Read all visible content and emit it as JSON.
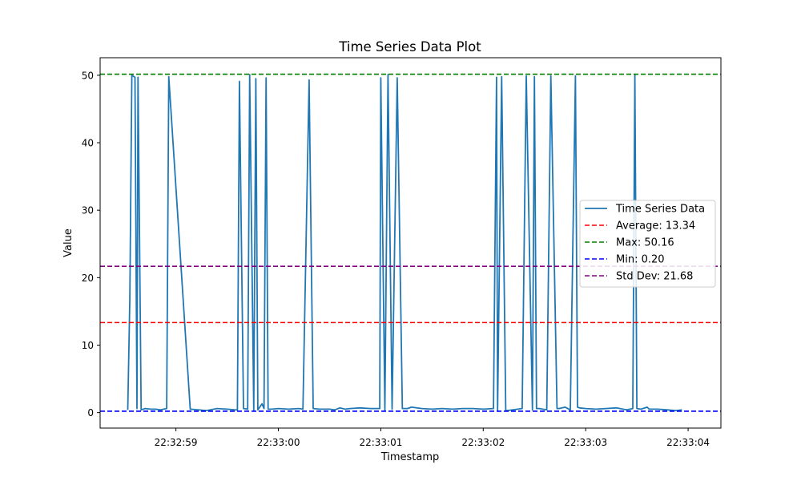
{
  "chart_data": {
    "type": "line",
    "title": "Time Series Data Plot",
    "xlabel": "Timestamp",
    "ylabel": "Value",
    "x_ticks": [
      "22:32:59",
      "22:33:00",
      "22:33:01",
      "22:33:02",
      "22:33:03",
      "22:33:04"
    ],
    "x_tick_seconds": [
      59,
      60,
      61,
      62,
      63,
      64
    ],
    "y_ticks": [
      0,
      10,
      20,
      30,
      40,
      50
    ],
    "xlim": [
      58.26,
      64.32
    ],
    "ylim": [
      -2.3,
      52.6
    ],
    "grid": false,
    "legend_position": "center-right",
    "series": [
      {
        "name": "Time Series Data",
        "color": "#1f77b4",
        "x": [
          58.53,
          58.55,
          58.57,
          58.6,
          58.62,
          58.63,
          58.66,
          58.7,
          58.75,
          58.8,
          58.85,
          58.88,
          58.91,
          58.93,
          59.14,
          59.3,
          59.4,
          59.5,
          59.58,
          59.6,
          59.62,
          59.66,
          59.7,
          59.72,
          59.76,
          59.78,
          59.8,
          59.84,
          59.86,
          59.88,
          59.9,
          59.94,
          60.0,
          60.1,
          60.2,
          60.24,
          60.3,
          60.34,
          60.4,
          60.5,
          60.55,
          60.6,
          60.65,
          60.7,
          60.8,
          60.9,
          60.99,
          61.0,
          61.04,
          61.07,
          61.11,
          61.16,
          61.21,
          61.24,
          61.26,
          61.3,
          61.4,
          61.5,
          61.6,
          61.7,
          61.8,
          61.9,
          62.0,
          62.1,
          62.13,
          62.14,
          62.18,
          62.22,
          62.24,
          62.38,
          62.42,
          62.48,
          62.5,
          62.52,
          62.55,
          62.58,
          62.62,
          62.66,
          62.72,
          62.74,
          62.8,
          62.85,
          62.9,
          62.92,
          62.94,
          63.0,
          63.1,
          63.2,
          63.3,
          63.4,
          63.46,
          63.48,
          63.5,
          63.54,
          63.6,
          63.62,
          63.66,
          63.7,
          63.8,
          63.88,
          63.94
        ],
        "y": [
          0.4,
          17.0,
          50.0,
          49.7,
          0.6,
          49.7,
          0.4,
          0.6,
          0.5,
          0.5,
          0.4,
          0.5,
          0.6,
          49.8,
          0.5,
          0.3,
          0.6,
          0.5,
          0.4,
          0.4,
          49.1,
          0.6,
          0.5,
          50.1,
          0.3,
          49.5,
          0.4,
          1.3,
          0.6,
          49.6,
          0.5,
          0.5,
          0.6,
          0.5,
          0.6,
          0.5,
          49.3,
          0.6,
          0.5,
          0.5,
          0.4,
          0.7,
          0.5,
          0.6,
          0.7,
          0.6,
          0.6,
          49.6,
          0.3,
          50.1,
          0.5,
          49.6,
          0.6,
          0.6,
          0.6,
          0.8,
          0.6,
          0.5,
          0.6,
          0.5,
          0.6,
          0.6,
          0.5,
          0.6,
          49.7,
          0.3,
          49.8,
          0.3,
          0.3,
          0.6,
          49.9,
          0.4,
          49.8,
          0.6,
          0.6,
          0.5,
          0.4,
          49.9,
          0.6,
          0.6,
          0.8,
          0.4,
          49.9,
          0.8,
          0.7,
          0.6,
          0.5,
          0.6,
          0.7,
          0.4,
          0.6,
          50.1,
          0.6,
          0.5,
          0.8,
          0.5,
          0.5,
          0.5,
          0.4,
          0.3,
          0.4
        ]
      }
    ],
    "reference_lines": [
      {
        "label": "Average: 13.34",
        "value": 13.34,
        "color": "#ff0000"
      },
      {
        "label": "Max: 50.16",
        "value": 50.16,
        "color": "#008000"
      },
      {
        "label": "Min: 0.20",
        "value": 0.2,
        "color": "#0000ff"
      },
      {
        "label": "Std Dev: 21.68",
        "value": 21.68,
        "color": "#800080"
      }
    ]
  }
}
